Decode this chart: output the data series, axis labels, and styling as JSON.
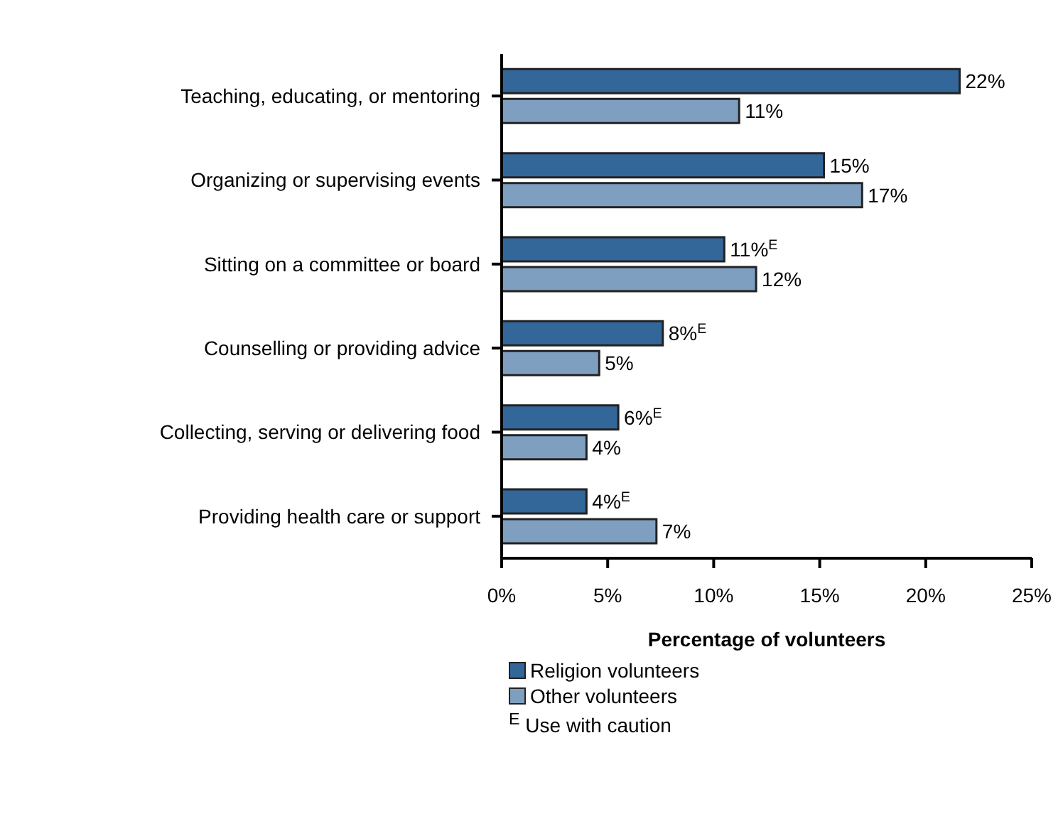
{
  "chart_data": {
    "type": "bar",
    "orientation": "horizontal",
    "xlabel": "Percentage of volunteers",
    "categories": [
      "Teaching, educating, or mentoring",
      "Organizing or supervising events",
      "Sitting on a committee or board",
      "Counselling or providing advice",
      "Collecting, serving or delivering food",
      "Providing health care or support"
    ],
    "series": [
      {
        "name": "Religion volunteers",
        "color": "#336699",
        "values": [
          21.6,
          15.2,
          10.5,
          7.6,
          5.5,
          4.0
        ],
        "value_labels": [
          "22%",
          "15%",
          "11%$^{E}$",
          "8%$^{E}$",
          "6%$^{E}$",
          "4%$^{E}$"
        ]
      },
      {
        "name": "Other volunteers",
        "color": "#7f9fc1",
        "values": [
          11.2,
          17.0,
          12.0,
          4.6,
          4.0,
          7.3
        ],
        "value_labels": [
          "11%",
          "17%",
          "12%",
          "5%",
          "4%",
          "7%"
        ]
      }
    ],
    "xlim": [
      0,
      25
    ],
    "xticks": [
      {
        "value": 0,
        "label": "0%"
      },
      {
        "value": 5,
        "label": "5%"
      },
      {
        "value": 10,
        "label": "10%"
      },
      {
        "value": 15,
        "label": "15%"
      },
      {
        "value": 20,
        "label": "20%"
      },
      {
        "value": 25,
        "label": "25%"
      }
    ],
    "legend": "bottom",
    "annotations": [
      "$^{E}$ Use with caution"
    ]
  }
}
